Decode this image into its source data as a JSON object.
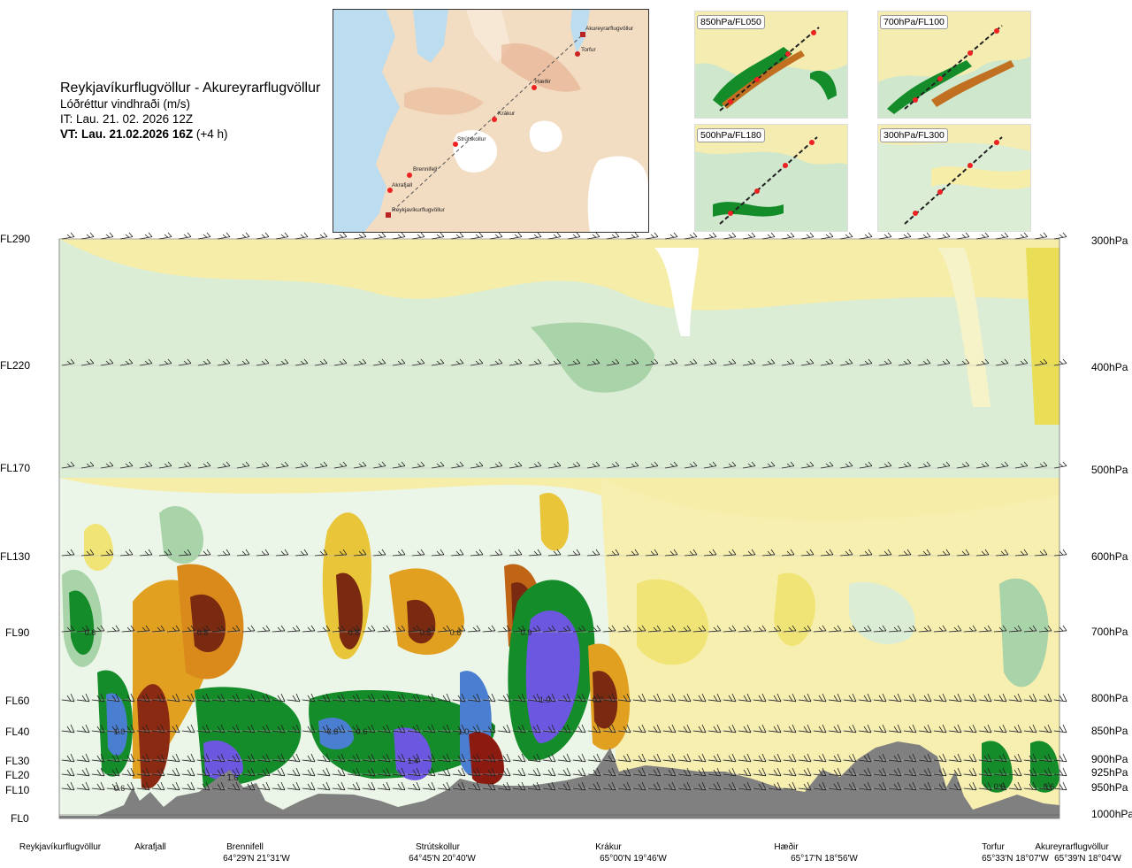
{
  "header": {
    "title": "Reykjavíkurflugvöllur - Akureyrarflugvöllur",
    "variable": "Lóðréttur vindhraði (m/s)",
    "it_line": "IT: Lau. 21. 02. 2026 12Z",
    "vt_bold": "VT: Lau. 21.02.2026 16Z",
    "vt_rest": " (+4 h)"
  },
  "map": {
    "stations": [
      "Akureyrarflugvöllur",
      "Torfur",
      "Hæðir",
      "Krákur",
      "Strútskollur",
      "Brennifell",
      "Akrafjall",
      "Reykjavíkurflugvöllur"
    ]
  },
  "thumbnails": [
    {
      "label": "850hPa/FL050"
    },
    {
      "label": "700hPa/FL100"
    },
    {
      "label": "500hPa/FL180"
    },
    {
      "label": "300hPa/FL300"
    }
  ],
  "colors": {
    "strong_up": "#6b57e0",
    "up": "#158c2a",
    "weak_up": "#cfe7cc",
    "down": "#e2a020",
    "strong_down": "#7a2a10",
    "weak_down": "#f6eda8",
    "terrain": "#808080"
  },
  "chart_data": {
    "type": "heatmap",
    "title": "Reykjavíkurflugvöllur - Akureyrarflugvöllur",
    "variable": "Lóðréttur vindhraði (m/s)",
    "y_levels_left": [
      "FL290",
      "FL220",
      "FL170",
      "FL130",
      "FL90",
      "FL60",
      "FL40",
      "FL30",
      "FL20",
      "FL10",
      "FL0"
    ],
    "y_levels_right": [
      "300hPa",
      "400hPa",
      "500hPa",
      "600hPa",
      "700hPa",
      "800hPa",
      "850hPa",
      "900hPa",
      "925hPa",
      "950hPa",
      "1000hPa"
    ],
    "x_locations": [
      {
        "name": "Reykjavíkurflugvöllur",
        "coord": ""
      },
      {
        "name": "Akrafjall",
        "coord": ""
      },
      {
        "name": "Brennifell",
        "coord": "64°29'N 21°31'W"
      },
      {
        "name": "Strútskollur",
        "coord": "64°45'N 20°40'W"
      },
      {
        "name": "Krákur",
        "coord": "65°00'N 19°46'W"
      },
      {
        "name": "Hæðir",
        "coord": "65°17'N 18°56'W"
      },
      {
        "name": "Torfur",
        "coord": "65°33'N 18°07'W"
      },
      {
        "name": "Akureyrarflugvöllur",
        "coord": "65°39'N 18°04'W"
      }
    ],
    "cell_labels": [
      {
        "text": "0.6",
        "level": "FL90",
        "near": "Akrafjall"
      },
      {
        "text": "0.8",
        "level": "FL90",
        "near": "Brennifell"
      },
      {
        "text": "0.8",
        "level": "FL90",
        "near": "Strútskollur"
      },
      {
        "text": "0.5",
        "level": "FL90",
        "near": "Strútskollur"
      },
      {
        "text": "0.6",
        "level": "FL90",
        "near": "Strútskollur"
      },
      {
        "text": "0.9",
        "level": "FL90",
        "near": "Krákur"
      },
      {
        "text": "1.0",
        "level": "FL60",
        "near": "Krákur"
      },
      {
        "text": "0.7",
        "level": "FL60",
        "near": "Krákur"
      },
      {
        "text": "1.0",
        "level": "FL40",
        "near": "Akrafjall"
      },
      {
        "text": "0.8",
        "level": "FL40",
        "near": "Strútskollur"
      },
      {
        "text": "0.6",
        "level": "FL40",
        "near": "Strútskollur"
      },
      {
        "text": "1.0",
        "level": "FL40",
        "near": "Strútskollur"
      },
      {
        "text": "1.4",
        "level": "FL30",
        "near": "Strútskollur"
      },
      {
        "text": "0.6",
        "level": "FL10",
        "near": "Akrafjall"
      },
      {
        "text": "1.6",
        "level": "FL10",
        "near": "Brennifell"
      },
      {
        "text": "0.6",
        "level": "FL10",
        "near": "Torfur"
      },
      {
        "text": "0.6",
        "level": "FL10",
        "near": "Akureyrarflugvöllur"
      }
    ]
  }
}
